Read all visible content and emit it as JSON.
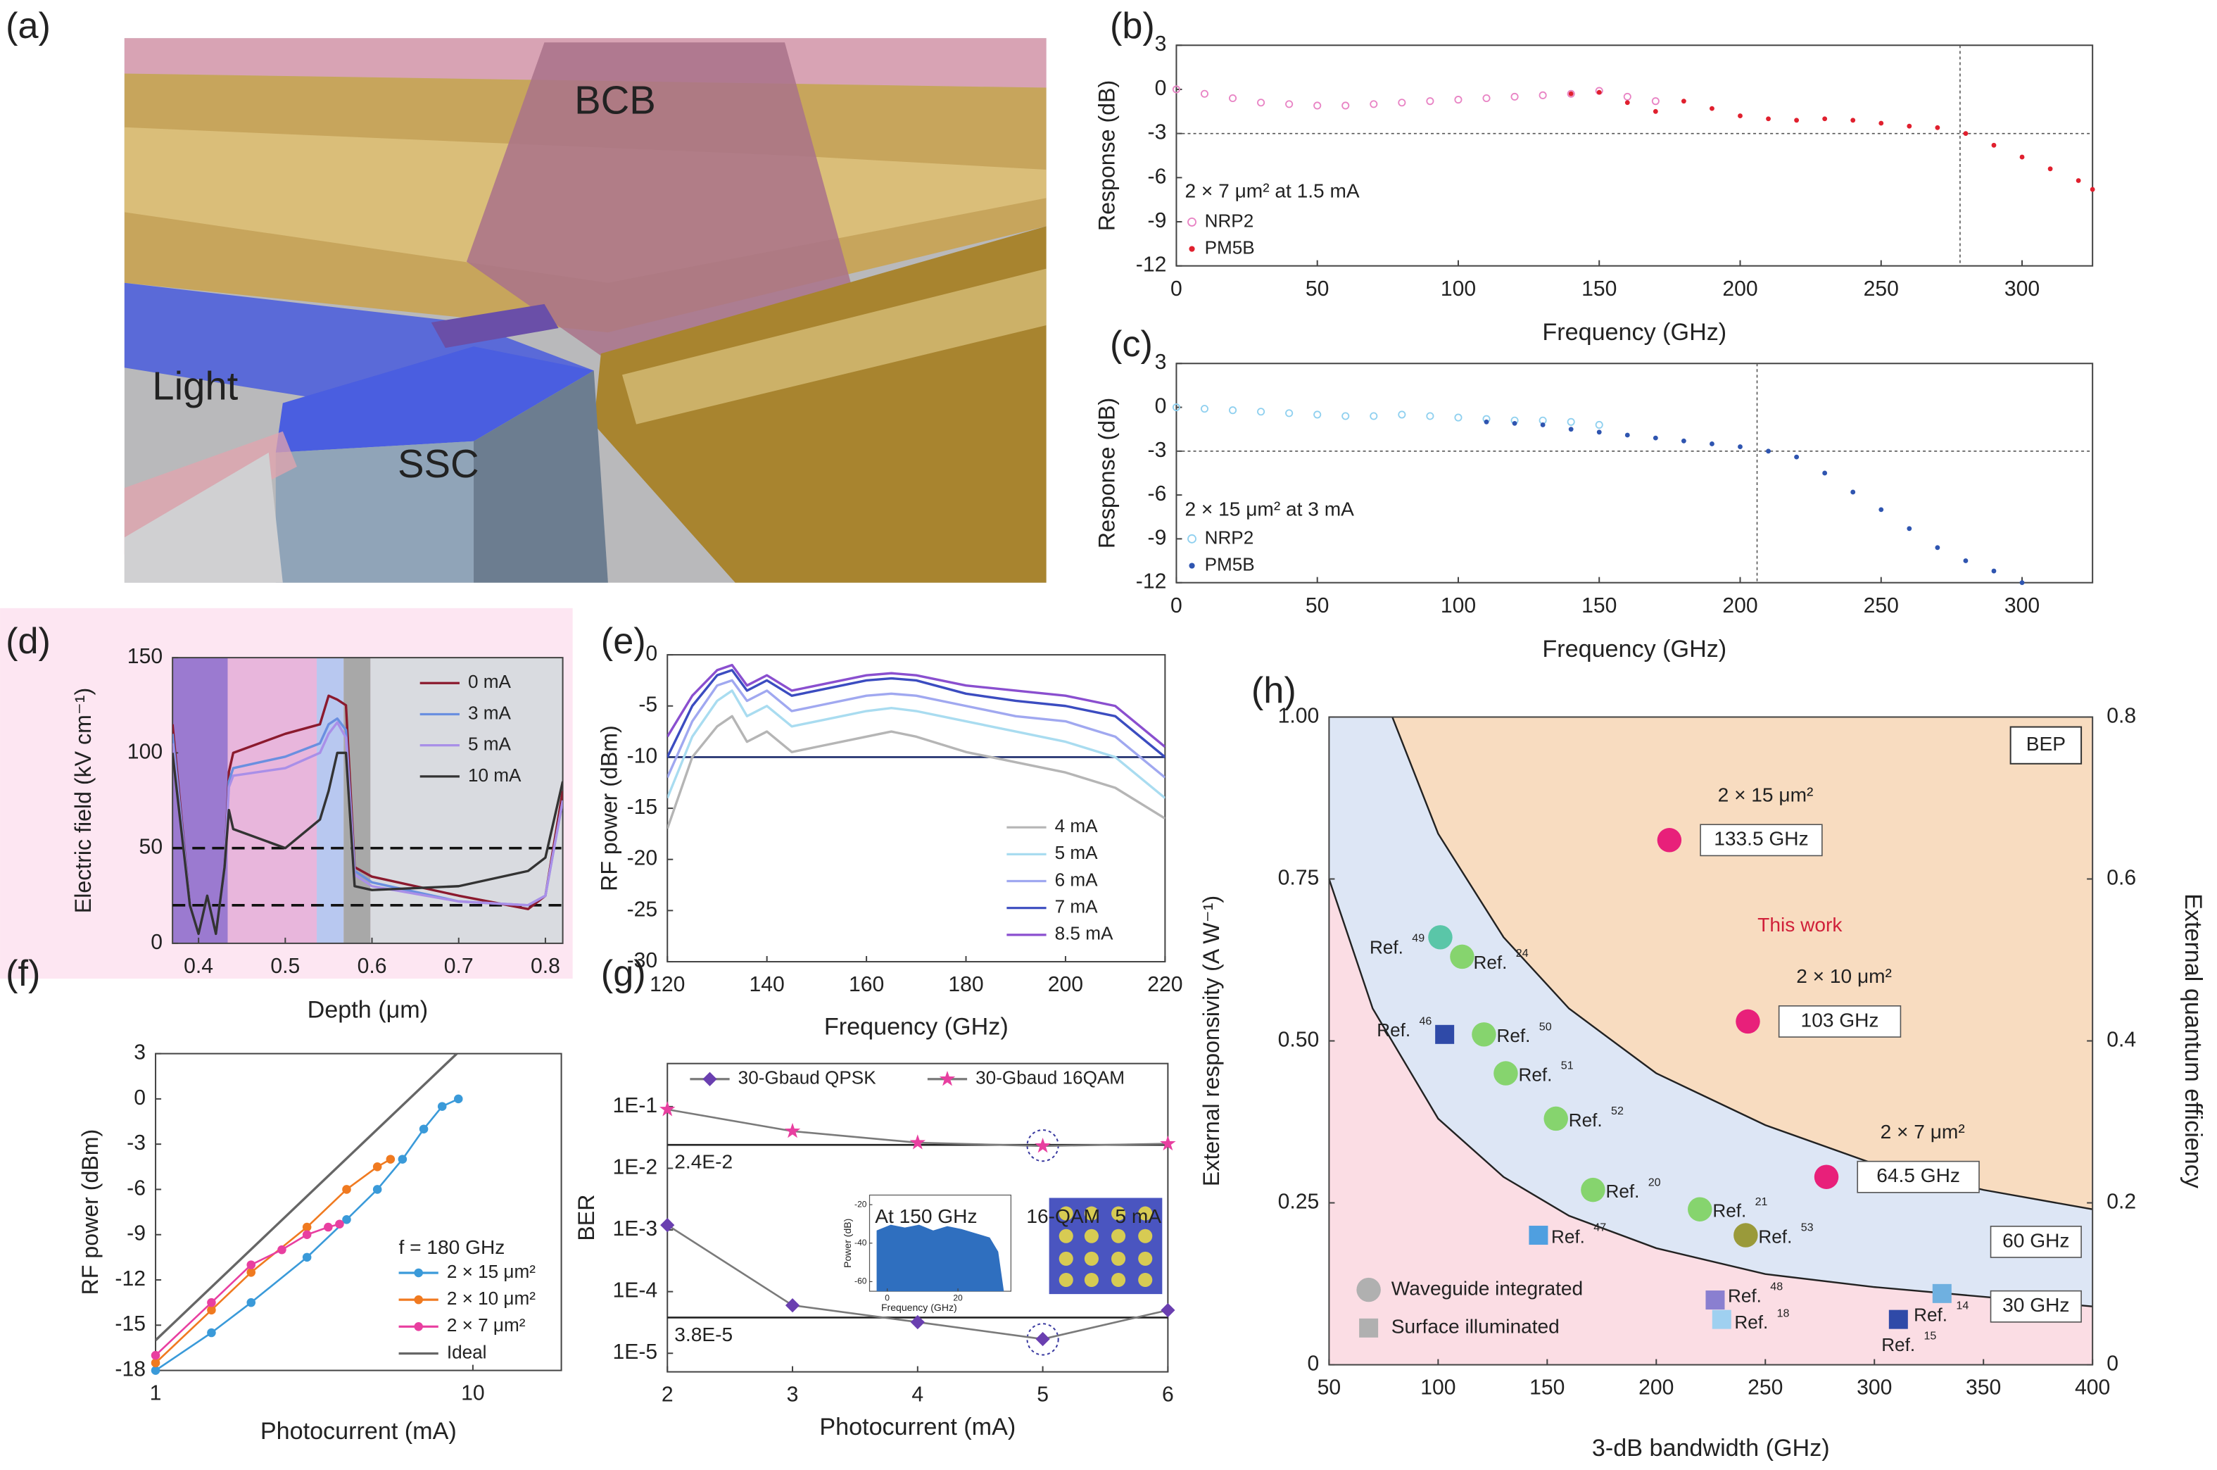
{
  "figure": {
    "panel_a_label": "(a)",
    "illustration_labels": [
      "BCB",
      "Light",
      "SSC"
    ]
  },
  "chart_data": [
    {
      "panel": "(b)",
      "type": "scatter",
      "xlabel": "Frequency (GHz)",
      "ylabel": "Response (dB)",
      "xlim": [
        0,
        325
      ],
      "xticks": [
        0,
        50,
        100,
        150,
        200,
        250,
        300
      ],
      "ylim": [
        -12,
        3
      ],
      "yticks": [
        3,
        0,
        -3,
        -6,
        -9,
        -12
      ],
      "ref_x": [
        278
      ],
      "ref_y": [
        -3
      ],
      "annotation": "2 × 7 μm² at 1.5 mA",
      "series": [
        {
          "name": "NRP2",
          "marker": "circle-open",
          "color": "#e883c4",
          "x": [
            0,
            10,
            20,
            30,
            40,
            50,
            60,
            70,
            80,
            90,
            100,
            110,
            120,
            130,
            140,
            150,
            160,
            170
          ],
          "values": [
            0,
            -0.3,
            -0.6,
            -0.9,
            -1,
            -1.1,
            -1.1,
            -1,
            -0.9,
            -0.8,
            -0.7,
            -0.6,
            -0.5,
            -0.4,
            -0.3,
            -0.1,
            -0.5,
            -0.8
          ]
        },
        {
          "name": "PM5B",
          "marker": "dot",
          "color": "#e0202e",
          "x": [
            140,
            150,
            160,
            170,
            180,
            190,
            200,
            210,
            220,
            230,
            240,
            250,
            260,
            270,
            280,
            290,
            300,
            310,
            320,
            325
          ],
          "values": [
            -0.3,
            -0.2,
            -0.9,
            -1.5,
            -0.8,
            -1.3,
            -1.8,
            -2.0,
            -2.1,
            -2.0,
            -2.1,
            -2.3,
            -2.5,
            -2.6,
            -3.0,
            -3.8,
            -4.6,
            -5.4,
            -6.2,
            -6.8
          ]
        }
      ]
    },
    {
      "panel": "(c)",
      "type": "scatter",
      "xlabel": "Frequency (GHz)",
      "ylabel": "Response (dB)",
      "xlim": [
        0,
        325
      ],
      "xticks": [
        0,
        50,
        100,
        150,
        200,
        250,
        300
      ],
      "ylim": [
        -12,
        3
      ],
      "yticks": [
        3,
        0,
        -3,
        -6,
        -9,
        -12
      ],
      "ref_x": [
        206
      ],
      "ref_y": [
        -3
      ],
      "annotation": "2 × 15 μm² at 3 mA",
      "series": [
        {
          "name": "NRP2",
          "marker": "circle-open",
          "color": "#8fd0ef",
          "x": [
            0,
            10,
            20,
            30,
            40,
            50,
            60,
            70,
            80,
            90,
            100,
            110,
            120,
            130,
            140,
            150
          ],
          "values": [
            0,
            -0.1,
            -0.2,
            -0.3,
            -0.4,
            -0.5,
            -0.6,
            -0.6,
            -0.5,
            -0.6,
            -0.7,
            -0.8,
            -0.9,
            -0.9,
            -1.0,
            -1.2
          ]
        },
        {
          "name": "PM5B",
          "marker": "dot",
          "color": "#2f55b0",
          "x": [
            110,
            120,
            130,
            140,
            150,
            160,
            170,
            180,
            190,
            200,
            210,
            220,
            230,
            240,
            250,
            260,
            270,
            280,
            290,
            300
          ],
          "values": [
            -1,
            -1.1,
            -1.2,
            -1.5,
            -1.7,
            -1.9,
            -2.1,
            -2.3,
            -2.5,
            -2.7,
            -3.0,
            -3.4,
            -4.5,
            -5.8,
            -7,
            -8.3,
            -9.6,
            -10.5,
            -11.2,
            -12
          ]
        }
      ]
    },
    {
      "panel": "(d)",
      "type": "line",
      "xlabel": "Depth (μm)",
      "ylabel": "Electric field (kV cm⁻¹)",
      "xlim": [
        0.37,
        0.82
      ],
      "xticks": [
        0.4,
        0.5,
        0.6,
        0.7,
        0.8
      ],
      "ylim": [
        0,
        150
      ],
      "yticks": [
        0,
        50,
        100,
        150
      ],
      "ref_y": [
        50,
        20
      ],
      "x": [
        0.37,
        0.39,
        0.4,
        0.41,
        0.42,
        0.43,
        0.435,
        0.44,
        0.5,
        0.54,
        0.55,
        0.56,
        0.57,
        0.58,
        0.6,
        0.7,
        0.78,
        0.8,
        0.82
      ],
      "series": [
        {
          "name": "0 mA",
          "color": "#8b1a2e",
          "values": [
            115,
            20,
            5,
            25,
            5,
            40,
            90,
            100,
            110,
            115,
            130,
            128,
            125,
            40,
            35,
            25,
            18,
            25,
            80
          ]
        },
        {
          "name": "3 mA",
          "color": "#6a8fe0",
          "values": [
            110,
            20,
            5,
            25,
            5,
            40,
            85,
            92,
            98,
            105,
            115,
            118,
            112,
            38,
            32,
            22,
            20,
            25,
            75
          ]
        },
        {
          "name": "5 mA",
          "color": "#a98fe8",
          "values": [
            105,
            20,
            5,
            25,
            5,
            40,
            82,
            88,
            92,
            100,
            110,
            116,
            108,
            36,
            30,
            22,
            20,
            25,
            75
          ]
        },
        {
          "name": "10 mA",
          "color": "#333333",
          "values": [
            100,
            20,
            5,
            25,
            5,
            40,
            70,
            60,
            50,
            65,
            80,
            100,
            100,
            30,
            28,
            30,
            38,
            45,
            85
          ]
        }
      ]
    },
    {
      "panel": "(e)",
      "type": "line",
      "xlabel": "Frequency (GHz)",
      "ylabel": "RF power (dBm)",
      "xlim": [
        120,
        220
      ],
      "xticks": [
        120,
        140,
        160,
        180,
        200,
        220
      ],
      "ylim": [
        -30,
        0
      ],
      "yticks": [
        0,
        -5,
        -10,
        -15,
        -20,
        -25,
        -30
      ],
      "ref_y": [
        -10
      ],
      "x": [
        120,
        125,
        130,
        133,
        136,
        140,
        145,
        150,
        160,
        165,
        170,
        180,
        190,
        200,
        210,
        220
      ],
      "series": [
        {
          "name": "4 mA",
          "color": "#b5b5b5",
          "values": [
            -17,
            -10,
            -7,
            -6,
            -8.5,
            -7.5,
            -9.5,
            -9,
            -8,
            -7.5,
            -8,
            -9.5,
            -10.5,
            -11.5,
            -13,
            -16
          ]
        },
        {
          "name": "5 mA",
          "color": "#a9dcf0",
          "values": [
            -14,
            -8,
            -4.5,
            -3.5,
            -6,
            -5,
            -7,
            -6.5,
            -5.5,
            -5.2,
            -5.5,
            -6.5,
            -7.5,
            -8.5,
            -10,
            -14
          ]
        },
        {
          "name": "6 mA",
          "color": "#a0a8f0",
          "values": [
            -12,
            -6.5,
            -3,
            -2.5,
            -4.5,
            -3.5,
            -5.5,
            -5,
            -4,
            -3.8,
            -4,
            -5,
            -6,
            -6.5,
            -8,
            -12
          ]
        },
        {
          "name": "7 mA",
          "color": "#3b4cc0",
          "values": [
            -10,
            -5,
            -2,
            -1.5,
            -3.5,
            -2.5,
            -4,
            -3.5,
            -2.5,
            -2.3,
            -2.5,
            -3.8,
            -4.5,
            -5,
            -6,
            -10
          ]
        },
        {
          "name": "8.5 mA",
          "color": "#8a4fcf",
          "values": [
            -8,
            -4,
            -1.5,
            -1,
            -3,
            -2,
            -3.5,
            -3,
            -2,
            -1.8,
            -2,
            -3,
            -3.5,
            -4,
            -5,
            -9
          ]
        }
      ]
    },
    {
      "panel": "(f)",
      "type": "line",
      "xlabel": "Photocurrent (mA)",
      "ylabel": "RF power (dBm)",
      "xlog": true,
      "xlim": [
        1,
        19
      ],
      "xticks": [
        1,
        10
      ],
      "ylim": [
        -18,
        3
      ],
      "yticks": [
        3,
        0,
        -3,
        -6,
        -9,
        -12,
        -15,
        -18
      ],
      "annotation": "f = 180 GHz",
      "series": [
        {
          "name": "2 × 15 μm²",
          "color": "#3a9ad9",
          "marker": "circle",
          "x": [
            1,
            1.5,
            2,
            3,
            4,
            5,
            6,
            7,
            8,
            9
          ],
          "values": [
            -18,
            -15.5,
            -13.5,
            -10.5,
            -8,
            -6,
            -4,
            -2,
            -0.5,
            0
          ]
        },
        {
          "name": "2 × 10 μm²",
          "color": "#f07a20",
          "marker": "circle",
          "x": [
            1,
            1.5,
            2,
            3,
            4,
            5,
            5.5
          ],
          "values": [
            -17.5,
            -14,
            -11.5,
            -8.5,
            -6,
            -4.5,
            -4
          ]
        },
        {
          "name": "2 × 7 μm²",
          "color": "#e83fa0",
          "marker": "circle",
          "x": [
            1,
            1.5,
            2,
            2.5,
            3,
            3.5,
            3.8
          ],
          "values": [
            -17,
            -13.5,
            -11,
            -10,
            -9,
            -8.5,
            -8.3
          ]
        },
        {
          "name": "Ideal",
          "color": "#666666",
          "x": [
            1,
            8.9
          ],
          "values": [
            -16,
            3
          ]
        }
      ]
    },
    {
      "panel": "(g)",
      "type": "line",
      "xlabel": "Photocurrent (mA)",
      "ylabel": "BER",
      "xlim": [
        2,
        6
      ],
      "xticks": [
        2,
        3,
        4,
        5,
        6
      ],
      "ylog": true,
      "ylim": [
        5e-06,
        0.5
      ],
      "yticks": [
        {
          "value": 0.1,
          "label": "1E-1"
        },
        {
          "value": 0.01,
          "label": "1E-2"
        },
        {
          "value": 0.001,
          "label": "1E-3"
        },
        {
          "value": 0.0001,
          "label": "1E-4"
        },
        {
          "value": 1e-05,
          "label": "1E-5"
        }
      ],
      "ref_lines": [
        {
          "value": 0.024,
          "label": "2.4E-2"
        },
        {
          "value": 3.8e-05,
          "label": "3.8E-5"
        }
      ],
      "annotations": [
        "At 150 GHz",
        "16-QAM",
        "5 mA"
      ],
      "inset": {
        "ylabel": "Power (dB)",
        "xlabel": "Frequency (GHz)",
        "ylim": [
          -65,
          -15
        ],
        "yticks": [
          -20,
          -40,
          -60
        ],
        "xlim": [
          -5,
          35
        ],
        "xticks": [
          0,
          20
        ]
      },
      "x": [
        2,
        3,
        4,
        5,
        6
      ],
      "series": [
        {
          "name": "30-Gbaud QPSK",
          "color": "#6a3fb0",
          "line_color": "#7a7a7a",
          "marker": "diamond",
          "values": [
            0.0012,
            6e-05,
            3.2e-05,
            1.7e-05,
            5e-05
          ]
        },
        {
          "name": "30-Gbaud 16QAM",
          "color": "#e83fa0",
          "line_color": "#7a7a7a",
          "marker": "star",
          "values": [
            0.09,
            0.04,
            0.026,
            0.023,
            0.025
          ]
        }
      ]
    },
    {
      "panel": "(h)",
      "type": "scatter",
      "xlabel": "3-dB bandwidth (GHz)",
      "ylabel": "External responsivity (A W⁻¹)",
      "y2label": "External quantum efficiency",
      "xlim": [
        50,
        400
      ],
      "xticks": [
        50,
        100,
        150,
        200,
        250,
        300,
        350,
        400
      ],
      "ylim": [
        0,
        1
      ],
      "yticks": [
        0,
        0.25,
        {
          "value": 0.5,
          "label": "0.50"
        },
        0.75,
        {
          "value": 1,
          "label": "1.00"
        }
      ],
      "y2lim": [
        0,
        0.8
      ],
      "y2ticks": [
        0,
        0.2,
        0.4,
        0.6,
        0.8
      ],
      "box_label": "BEP",
      "annotation": "This work",
      "curves": [
        {
          "label": "60 GHz",
          "x": [
            79,
            100,
            130,
            160,
            200,
            250,
            300,
            350,
            400
          ],
          "y": [
            1.0,
            0.82,
            0.66,
            0.55,
            0.45,
            0.37,
            0.31,
            0.27,
            0.24
          ]
        },
        {
          "label": "30 GHz",
          "x": [
            50,
            70,
            100,
            130,
            160,
            200,
            250,
            300,
            350,
            400
          ],
          "y": [
            0.75,
            0.55,
            0.38,
            0.29,
            0.23,
            0.18,
            0.14,
            0.12,
            0.105,
            0.09
          ]
        }
      ],
      "points": [
        {
          "x": 206,
          "y": 0.81,
          "color": "#e8207a",
          "shape": "circle",
          "label": "133.5 GHz",
          "note": "2 × 15 μm²"
        },
        {
          "x": 242,
          "y": 0.53,
          "color": "#e8207a",
          "shape": "circle",
          "label": "103 GHz",
          "note": "2 × 10 μm²"
        },
        {
          "x": 278,
          "y": 0.29,
          "color": "#e8207a",
          "shape": "circle",
          "label": "64.5 GHz",
          "note": "2 × 7 μm²"
        },
        {
          "x": 101,
          "y": 0.66,
          "color": "#5ac6a8",
          "shape": "circle",
          "label": "Ref.",
          "note": "49"
        },
        {
          "x": 111,
          "y": 0.63,
          "color": "#86d46e",
          "shape": "circle",
          "label": "Ref.",
          "note": "24"
        },
        {
          "x": 103,
          "y": 0.51,
          "color": "#2f4aa8",
          "shape": "square",
          "label": "Ref.",
          "note": "46"
        },
        {
          "x": 121,
          "y": 0.51,
          "color": "#86d46e",
          "shape": "circle",
          "label": "Ref.",
          "note": "50"
        },
        {
          "x": 131,
          "y": 0.45,
          "color": "#86d46e",
          "shape": "circle",
          "label": "Ref.",
          "note": "51"
        },
        {
          "x": 154,
          "y": 0.38,
          "color": "#86d46e",
          "shape": "circle",
          "label": "Ref.",
          "note": "52"
        },
        {
          "x": 171,
          "y": 0.27,
          "color": "#86d46e",
          "shape": "circle",
          "label": "Ref.",
          "note": "20"
        },
        {
          "x": 220,
          "y": 0.24,
          "color": "#86d46e",
          "shape": "circle",
          "label": "Ref.",
          "note": "21"
        },
        {
          "x": 241,
          "y": 0.2,
          "color": "#9a9a3a",
          "shape": "circle",
          "label": "Ref.",
          "note": "53"
        },
        {
          "x": 146,
          "y": 0.2,
          "color": "#4f9fe0",
          "shape": "square",
          "label": "Ref.",
          "note": "47"
        },
        {
          "x": 227,
          "y": 0.1,
          "color": "#8a7fd0",
          "shape": "square",
          "label": "Ref.",
          "note": "48"
        },
        {
          "x": 230,
          "y": 0.07,
          "color": "#9fd0f0",
          "shape": "square",
          "label": "Ref.",
          "note": "18"
        },
        {
          "x": 331,
          "y": 0.11,
          "color": "#6fb0e0",
          "shape": "square",
          "label": "Ref.",
          "note": "14"
        },
        {
          "x": 311,
          "y": 0.07,
          "color": "#2f4aa8",
          "shape": "square",
          "label": "Ref.",
          "note": "15"
        }
      ],
      "legend": [
        {
          "name": "Waveguide integrated",
          "shape": "circle"
        },
        {
          "name": "Surface illuminated",
          "shape": "square"
        }
      ]
    }
  ]
}
